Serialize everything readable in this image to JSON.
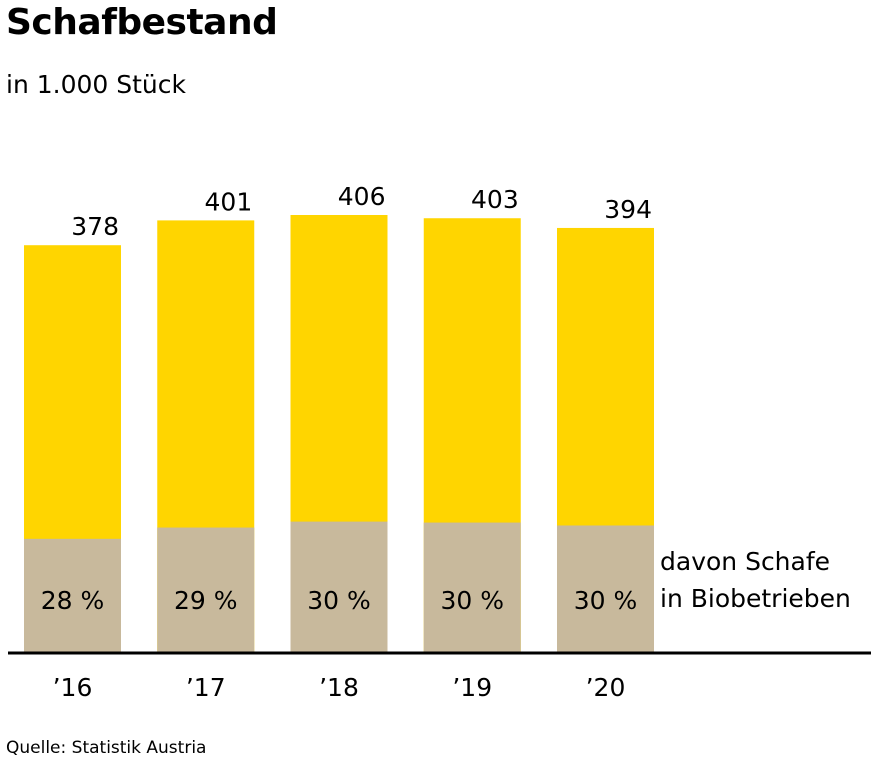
{
  "title": "Schafbestand",
  "subtitle": "in 1.000 Stück",
  "source": "Quelle: Statistik Austria",
  "colors": {
    "total": "#FFD500",
    "bio": "#C8B99C",
    "axis": "#000000"
  },
  "chart_data": {
    "type": "bar",
    "categories": [
      "’16",
      "’17",
      "’18",
      "’19",
      "’20"
    ],
    "values": [
      378,
      401,
      406,
      403,
      394
    ],
    "value_labels": [
      "378",
      "401",
      "406",
      "403",
      "394"
    ],
    "bio_share_percent": [
      28,
      29,
      30,
      30,
      30
    ],
    "bio_share_labels": [
      "28 %",
      "29 %",
      "30 %",
      "30 %",
      "30 %"
    ],
    "legend": [
      "davon Schafe",
      "in Biobetrieben"
    ],
    "ylim": [
      0,
      406
    ],
    "grid": false
  }
}
